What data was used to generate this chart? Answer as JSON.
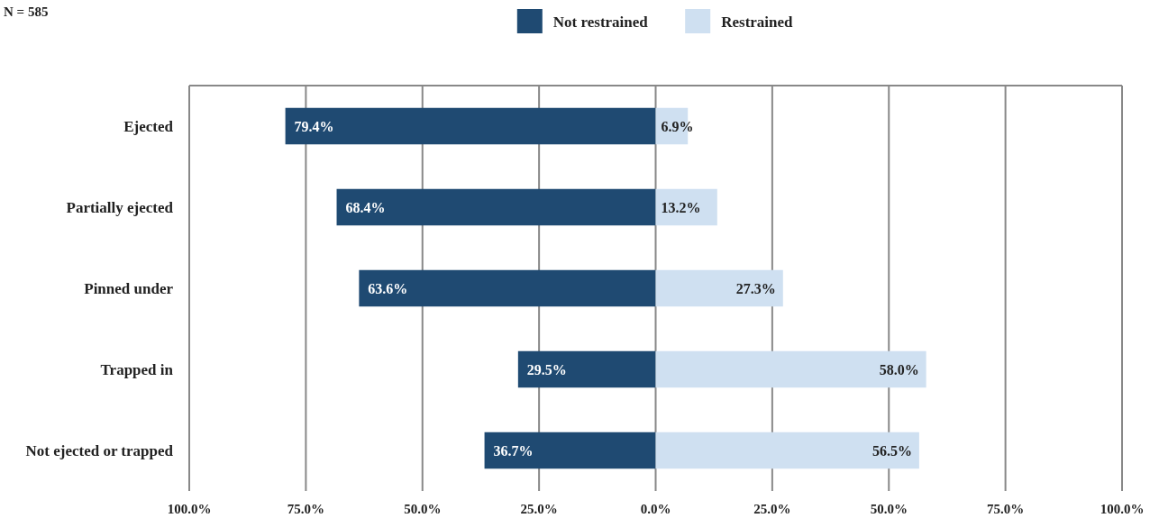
{
  "chart_data": {
    "type": "bar",
    "orientation": "horizontal",
    "categories": [
      "Ejected",
      "Partially ejected",
      "Pinned under",
      "Trapped in",
      "Not ejected or trapped"
    ],
    "series": [
      {
        "name": "Not restrained",
        "color": "#1f4a72",
        "base": [
          -79.4,
          -68.4,
          -63.6,
          -29.5,
          -36.7
        ],
        "values": [
          79.4,
          68.4,
          63.6,
          29.5,
          36.7
        ],
        "value_labels": [
          "79.4%",
          "68.4%",
          "63.6%",
          "29.5%",
          "36.7%"
        ]
      },
      {
        "name": "Restrained",
        "color": "#cfe0f1",
        "values": [
          6.9,
          13.2,
          27.3,
          58.0,
          56.5
        ],
        "value_labels": [
          "6.9%",
          "13.2%",
          "27.3%",
          "58.0%",
          "56.5%"
        ]
      }
    ],
    "xlim": [
      -100,
      100
    ],
    "xticks": [
      {
        "value": -100,
        "label": "100.0%"
      },
      {
        "value": -75,
        "label": "75.0%"
      },
      {
        "value": -50,
        "label": "50.0%"
      },
      {
        "value": -25,
        "label": "25.0%"
      },
      {
        "value": 0,
        "label": "0.0%"
      },
      {
        "value": 25,
        "label": "25.0%"
      },
      {
        "value": 50,
        "label": "50.0%"
      },
      {
        "value": 75,
        "label": "75.0%"
      },
      {
        "value": 100,
        "label": "100.0%"
      }
    ],
    "grid": "x",
    "legend": "top",
    "annotations": [
      "N = 585"
    ]
  }
}
